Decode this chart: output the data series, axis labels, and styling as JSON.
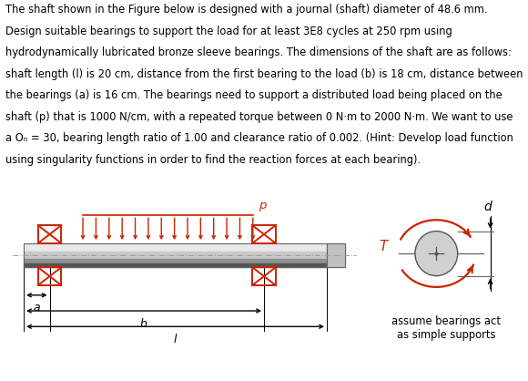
{
  "text_block": [
    "The shaft shown in the Figure below is designed with a journal (shaft) diameter of 48.6 mm.",
    "Design suitable bearings to support the load for at least 3E8 cycles at 250 rpm using",
    "hydrodynamically lubricated bronze sleeve bearings. The dimensions of the shaft are as follows:",
    "shaft length (l) is 20 cm, distance from the first bearing to the load (b) is 18 cm, distance between",
    "the bearings (a) is 16 cm. The bearings need to support a distributed load being placed on the",
    "shaft (p) that is 1000 N/cm, with a repeated torque between 0 N·m to 2000 N·m. We want to use",
    "a Oₙ = 30, bearing length ratio of 1.00 and clearance ratio of 0.002. (Hint: Develop load function",
    "using singularity functions in order to find the reaction forces at each bearing)."
  ],
  "text_color": "#000000",
  "text_fontsize": 8.3,
  "bg_color": "#ffffff",
  "bearing_color": "#cc2200",
  "arrow_color": "#cc2200",
  "label_color": "#cc2200",
  "dim_color": "#000000",
  "note_text": [
    "assume bearings act",
    "as simple supports"
  ]
}
